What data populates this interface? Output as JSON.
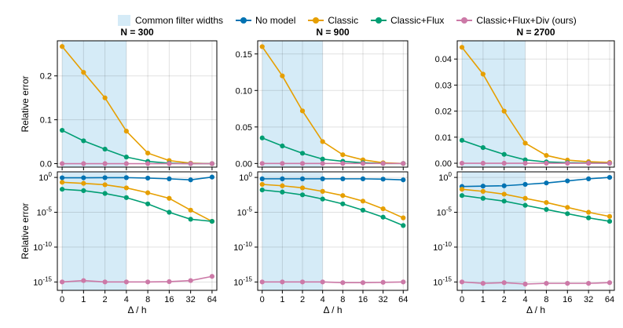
{
  "legend": {
    "band_label": "Common filter widths",
    "band_color": "#d5ebf7",
    "series": [
      {
        "name": "No model",
        "color": "#0072b2"
      },
      {
        "name": "Classic",
        "color": "#e69f00"
      },
      {
        "name": "Classic+Flux",
        "color": "#009e73"
      },
      {
        "name": "Classic+Flux+Div (ours)",
        "color": "#cc79a7"
      }
    ]
  },
  "chart_data": [
    {
      "type": "line",
      "title": "N = 300",
      "scale": "linear",
      "xlabel": "",
      "ylabel": "Relative error",
      "categories": [
        "0",
        "1",
        "2",
        "4",
        "8",
        "16",
        "32",
        "64"
      ],
      "band": [
        0,
        3
      ],
      "ylim": [
        -0.008,
        0.28
      ],
      "yticks": [
        0.0,
        0.1,
        0.2
      ],
      "yticklabels": [
        "0.0",
        "0.1",
        "0.2"
      ],
      "series": [
        {
          "name": "Classic",
          "values": [
            0.267,
            0.208,
            0.15,
            0.074,
            0.024,
            0.007,
            0.001,
            0.0
          ]
        },
        {
          "name": "Classic+Flux",
          "values": [
            0.076,
            0.052,
            0.033,
            0.015,
            0.005,
            0.001,
            0.0,
            0.0
          ]
        },
        {
          "name": "Classic+Flux+Div (ours)",
          "values": [
            0.0,
            0.0,
            0.0,
            0.0,
            0.0,
            0.0,
            0.0,
            0.0
          ]
        }
      ]
    },
    {
      "type": "line",
      "title": "N = 900",
      "scale": "linear",
      "xlabel": "",
      "ylabel": "",
      "categories": [
        "0",
        "1",
        "2",
        "4",
        "8",
        "16",
        "32",
        "64"
      ],
      "band": [
        0,
        3
      ],
      "ylim": [
        -0.005,
        0.168
      ],
      "yticks": [
        0.0,
        0.05,
        0.1,
        0.15
      ],
      "yticklabels": [
        "0.00",
        "0.05",
        "0.10",
        "0.15"
      ],
      "series": [
        {
          "name": "Classic",
          "values": [
            0.16,
            0.12,
            0.072,
            0.03,
            0.012,
            0.005,
            0.001,
            0.0
          ]
        },
        {
          "name": "Classic+Flux",
          "values": [
            0.035,
            0.024,
            0.014,
            0.006,
            0.003,
            0.001,
            0.0,
            0.0
          ]
        },
        {
          "name": "Classic+Flux+Div (ours)",
          "values": [
            0.0,
            0.0,
            0.0,
            0.0,
            0.0,
            0.0,
            0.0,
            0.0
          ]
        }
      ]
    },
    {
      "type": "line",
      "title": "N = 2700",
      "scale": "linear",
      "xlabel": "",
      "ylabel": "",
      "categories": [
        "0",
        "1",
        "2",
        "4",
        "8",
        "16",
        "32",
        "64"
      ],
      "band": [
        0,
        3
      ],
      "ylim": [
        -0.0015,
        0.047
      ],
      "yticks": [
        0.0,
        0.01,
        0.02,
        0.03,
        0.04
      ],
      "yticklabels": [
        "0.00",
        "0.01",
        "0.02",
        "0.03",
        "0.04"
      ],
      "series": [
        {
          "name": "Classic",
          "values": [
            0.0445,
            0.0342,
            0.02,
            0.0077,
            0.003,
            0.0012,
            0.0006,
            0.0003
          ]
        },
        {
          "name": "Classic+Flux",
          "values": [
            0.0088,
            0.006,
            0.0034,
            0.0013,
            0.0005,
            0.0002,
            0.0001,
            0.0
          ]
        },
        {
          "name": "Classic+Flux+Div (ours)",
          "values": [
            0.0,
            0.0,
            0.0,
            0.0,
            0.0,
            0.0,
            0.0,
            0.0
          ]
        }
      ]
    },
    {
      "type": "line",
      "title": "",
      "scale": "log",
      "xlabel": "Δ / h",
      "ylabel": "Relative error",
      "categories": [
        "0",
        "1",
        "2",
        "4",
        "8",
        "16",
        "32",
        "64"
      ],
      "band": [
        0,
        3
      ],
      "ylim_log10": [
        -16.2,
        0.8
      ],
      "yticks_log10": [
        0,
        -5,
        -10,
        -15
      ],
      "yticklabels": [
        "10",
        "10",
        "10",
        "10"
      ],
      "ytickexps": [
        "0",
        "-5",
        "-10",
        "-15"
      ],
      "series": [
        {
          "name": "No model",
          "log10_values": [
            -0.05,
            -0.05,
            -0.04,
            -0.03,
            -0.1,
            -0.2,
            -0.35,
            0.05
          ]
        },
        {
          "name": "Classic",
          "log10_values": [
            -0.7,
            -0.85,
            -1.05,
            -1.5,
            -2.2,
            -3.0,
            -4.7,
            -6.3
          ]
        },
        {
          "name": "Classic+Flux",
          "log10_values": [
            -1.7,
            -1.9,
            -2.3,
            -2.9,
            -3.8,
            -5.0,
            -6.0,
            -6.3
          ]
        },
        {
          "name": "Classic+Flux+Div (ours)",
          "log10_values": [
            -15.0,
            -14.8,
            -15.0,
            -15.0,
            -15.0,
            -14.95,
            -14.8,
            -14.2
          ]
        }
      ]
    },
    {
      "type": "line",
      "title": "",
      "scale": "log",
      "xlabel": "Δ / h",
      "ylabel": "",
      "categories": [
        "0",
        "1",
        "2",
        "4",
        "8",
        "16",
        "32",
        "64"
      ],
      "band": [
        0,
        3
      ],
      "ylim_log10": [
        -16.2,
        0.8
      ],
      "yticks_log10": [
        0,
        -5,
        -10,
        -15
      ],
      "yticklabels": [
        "10",
        "10",
        "10",
        "10"
      ],
      "ytickexps": [
        "0",
        "-5",
        "-10",
        "-15"
      ],
      "series": [
        {
          "name": "No model",
          "log10_values": [
            -0.2,
            -0.2,
            -0.2,
            -0.2,
            -0.2,
            -0.2,
            -0.25,
            -0.35
          ]
        },
        {
          "name": "Classic",
          "log10_values": [
            -1.0,
            -1.2,
            -1.5,
            -2.0,
            -2.6,
            -3.4,
            -4.5,
            -5.8
          ]
        },
        {
          "name": "Classic+Flux",
          "log10_values": [
            -1.8,
            -2.1,
            -2.5,
            -3.1,
            -3.8,
            -4.7,
            -5.7,
            -6.9
          ]
        },
        {
          "name": "Classic+Flux+Div (ours)",
          "log10_values": [
            -15.0,
            -15.0,
            -15.0,
            -15.0,
            -15.1,
            -15.1,
            -15.05,
            -15.0
          ]
        }
      ]
    },
    {
      "type": "line",
      "title": "",
      "scale": "log",
      "xlabel": "Δ / h",
      "ylabel": "",
      "categories": [
        "0",
        "1",
        "2",
        "4",
        "8",
        "16",
        "32",
        "64"
      ],
      "band": [
        0,
        3
      ],
      "ylim_log10": [
        -16.2,
        0.8
      ],
      "yticks_log10": [
        0,
        -5,
        -10,
        -15
      ],
      "yticklabels": [
        "10",
        "10",
        "10",
        "10"
      ],
      "ytickexps": [
        "0",
        "-5",
        "-10",
        "-15"
      ],
      "series": [
        {
          "name": "No model",
          "log10_values": [
            -1.3,
            -1.25,
            -1.2,
            -1.0,
            -0.8,
            -0.5,
            -0.2,
            0.0
          ]
        },
        {
          "name": "Classic",
          "log10_values": [
            -1.7,
            -2.0,
            -2.4,
            -3.0,
            -3.6,
            -4.3,
            -5.0,
            -5.6
          ]
        },
        {
          "name": "Classic+Flux",
          "log10_values": [
            -2.6,
            -3.0,
            -3.4,
            -4.0,
            -4.6,
            -5.2,
            -5.8,
            -6.3
          ]
        },
        {
          "name": "Classic+Flux+Div (ours)",
          "log10_values": [
            -15.0,
            -15.2,
            -15.1,
            -15.3,
            -15.2,
            -15.2,
            -15.2,
            -15.1
          ]
        }
      ]
    }
  ]
}
